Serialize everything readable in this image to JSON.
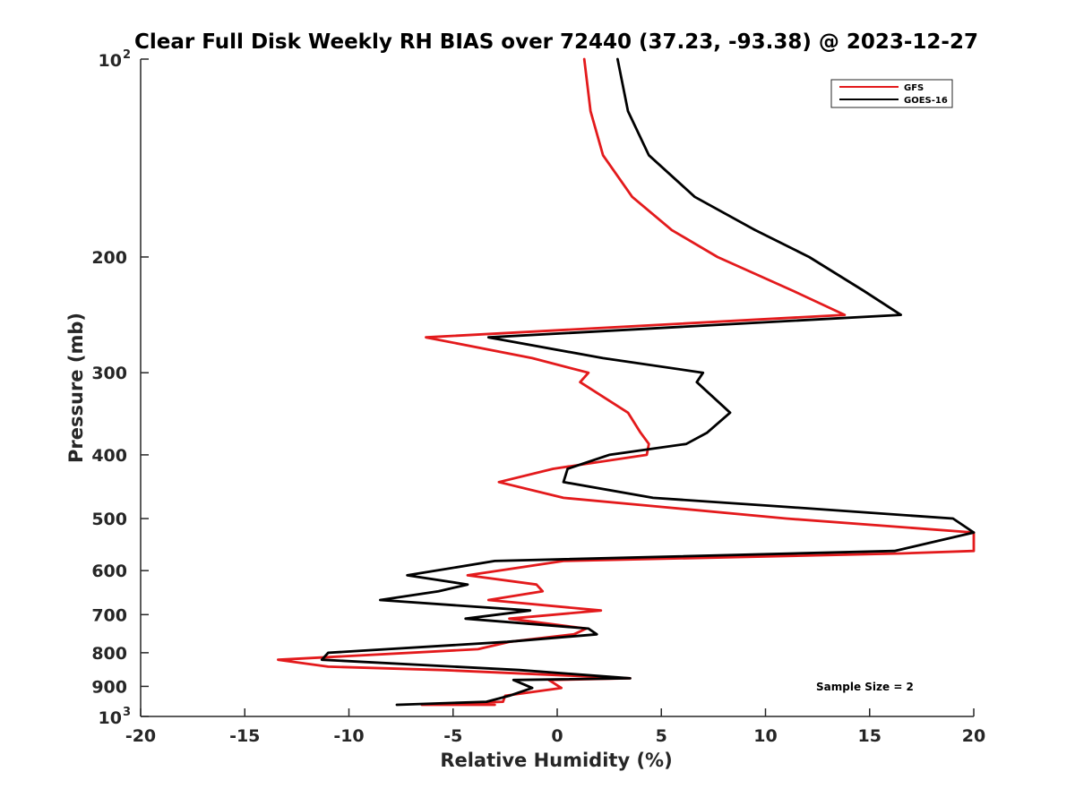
{
  "chart_data": {
    "type": "line",
    "title": "Clear Full Disk Weekly RH BIAS over 72440 (37.23, -93.38) @ 2023-12-27",
    "xlabel": "Relative Humidity (%)",
    "ylabel": "Pressure (mb)",
    "xlim": [
      -20,
      20
    ],
    "ylim": [
      100,
      1000
    ],
    "yscale": "log",
    "y_reversed": true,
    "grid": false,
    "legend_position": "top-right",
    "x_ticks": [
      "-20",
      "-15",
      "-10",
      "-5",
      "0",
      "5",
      "10",
      "15",
      "20"
    ],
    "y_ticks": [
      {
        "value": 100,
        "label": "10",
        "sup": "2"
      },
      {
        "value": 200,
        "label": "200",
        "sup": ""
      },
      {
        "value": 300,
        "label": "300",
        "sup": ""
      },
      {
        "value": 400,
        "label": "400",
        "sup": ""
      },
      {
        "value": 500,
        "label": "500",
        "sup": ""
      },
      {
        "value": 600,
        "label": "600",
        "sup": ""
      },
      {
        "value": 700,
        "label": "700",
        "sup": ""
      },
      {
        "value": 800,
        "label": "800",
        "sup": ""
      },
      {
        "value": 900,
        "label": "900",
        "sup": ""
      },
      {
        "value": 1000,
        "label": "10",
        "sup": "3"
      }
    ],
    "annotation": "Sample Size = 2",
    "series": [
      {
        "name": "GFS",
        "color": "#e31a1c",
        "points": [
          [
            1.3,
            100
          ],
          [
            1.6,
            120
          ],
          [
            2.2,
            140
          ],
          [
            3.6,
            162
          ],
          [
            5.5,
            182
          ],
          [
            7.7,
            200
          ],
          [
            11.3,
            225
          ],
          [
            13.8,
            245
          ],
          [
            -6.3,
            265
          ],
          [
            -1.2,
            285
          ],
          [
            1.5,
            300
          ],
          [
            1.1,
            310
          ],
          [
            3.4,
            345
          ],
          [
            4.0,
            370
          ],
          [
            4.4,
            385
          ],
          [
            4.3,
            400
          ],
          [
            -0.2,
            420
          ],
          [
            -2.8,
            440
          ],
          [
            0.3,
            465
          ],
          [
            5.0,
            480
          ],
          [
            11.0,
            500
          ],
          [
            20.0,
            525
          ],
          [
            20.0,
            560
          ],
          [
            16.5,
            565
          ],
          [
            0.3,
            580
          ],
          [
            -4.3,
            610
          ],
          [
            -1.0,
            630
          ],
          [
            -0.7,
            645
          ],
          [
            -3.3,
            665
          ],
          [
            2.1,
            690
          ],
          [
            -2.3,
            710
          ],
          [
            1.4,
            735
          ],
          [
            0.8,
            750
          ],
          [
            -2.3,
            770
          ],
          [
            -3.8,
            790
          ],
          [
            -13.4,
            820
          ],
          [
            -11.0,
            840
          ],
          [
            -5.5,
            850
          ],
          [
            3.5,
            875
          ],
          [
            -0.4,
            880
          ],
          [
            0.2,
            905
          ],
          [
            -2.5,
            930
          ],
          [
            -2.6,
            950
          ],
          [
            -6.5,
            960
          ],
          [
            -3.0,
            960
          ]
        ]
      },
      {
        "name": "GOES-16",
        "color": "#000000",
        "points": [
          [
            2.9,
            100
          ],
          [
            3.4,
            120
          ],
          [
            4.4,
            140
          ],
          [
            6.6,
            162
          ],
          [
            9.5,
            182
          ],
          [
            12.1,
            200
          ],
          [
            14.7,
            225
          ],
          [
            16.5,
            245
          ],
          [
            -3.3,
            265
          ],
          [
            2.2,
            285
          ],
          [
            7.0,
            300
          ],
          [
            6.7,
            310
          ],
          [
            8.3,
            345
          ],
          [
            7.2,
            370
          ],
          [
            6.2,
            385
          ],
          [
            2.5,
            400
          ],
          [
            0.5,
            420
          ],
          [
            0.3,
            440
          ],
          [
            4.6,
            465
          ],
          [
            11.0,
            480
          ],
          [
            19.0,
            500
          ],
          [
            20.0,
            525
          ],
          [
            16.2,
            560
          ],
          [
            -3.0,
            580
          ],
          [
            -7.2,
            610
          ],
          [
            -4.3,
            630
          ],
          [
            -5.7,
            645
          ],
          [
            -8.5,
            665
          ],
          [
            -1.3,
            690
          ],
          [
            -4.4,
            710
          ],
          [
            1.5,
            735
          ],
          [
            1.9,
            750
          ],
          [
            -2.4,
            770
          ],
          [
            -11.0,
            800
          ],
          [
            -11.3,
            820
          ],
          [
            -1.8,
            850
          ],
          [
            3.5,
            875
          ],
          [
            -2.1,
            880
          ],
          [
            -1.2,
            905
          ],
          [
            -2.3,
            930
          ],
          [
            -3.4,
            950
          ],
          [
            -7.7,
            960
          ]
        ]
      }
    ]
  }
}
